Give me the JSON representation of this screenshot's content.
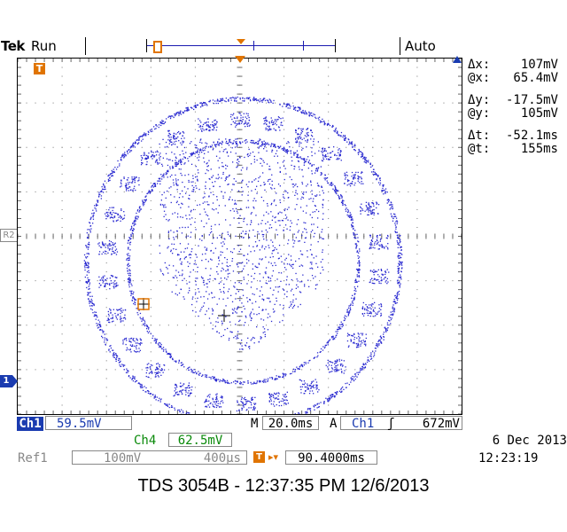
{
  "header": {
    "brand": "Tek",
    "run_state": "Run",
    "trigger_mode": "Auto"
  },
  "markers": {
    "trigger_position": "T",
    "ref2": "R2",
    "ch1": "1"
  },
  "cursor_readouts": [
    {
      "label": "Δx:",
      "value": "107mV"
    },
    {
      "label": "@x:",
      "value": "65.4mV"
    },
    {
      "label": "Δy:",
      "value": "-17.5mV"
    },
    {
      "label": "@y:",
      "value": "105mV"
    },
    {
      "label": "Δt:",
      "value": "-52.1ms"
    },
    {
      "label": "@t:",
      "value": "155ms"
    }
  ],
  "status": {
    "ch1_label": "Ch1",
    "ch1_scale": "59.5mV",
    "timebase_label": "M",
    "timebase": "20.0ms",
    "trigger_label": "A",
    "trigger_source": "Ch1",
    "trigger_slope": "ʃ",
    "trigger_level": "672mV",
    "ch4_label": "Ch4",
    "ch4_scale": "62.5mV",
    "ref1_label": "Ref1",
    "ref1_volts": "100mV",
    "ref1_time": "400µs",
    "trigpos_icon": "T",
    "trigpos_arrow": "▸▾",
    "trigger_position": "90.4000ms",
    "date": "6 Dec  2013",
    "time": "12:23:19"
  },
  "caption": "TDS 3054B - 12:37:35 PM    12/6/2013",
  "colors": {
    "trace": "#2a2ad0",
    "ch1": "#1a3bb0",
    "ch4": "#0a8a0a",
    "trigger": "#e07400",
    "ref": "#888888"
  },
  "icons": {
    "trigger_slope": "rising-edge-icon",
    "cursor": "crosshair-icon"
  }
}
